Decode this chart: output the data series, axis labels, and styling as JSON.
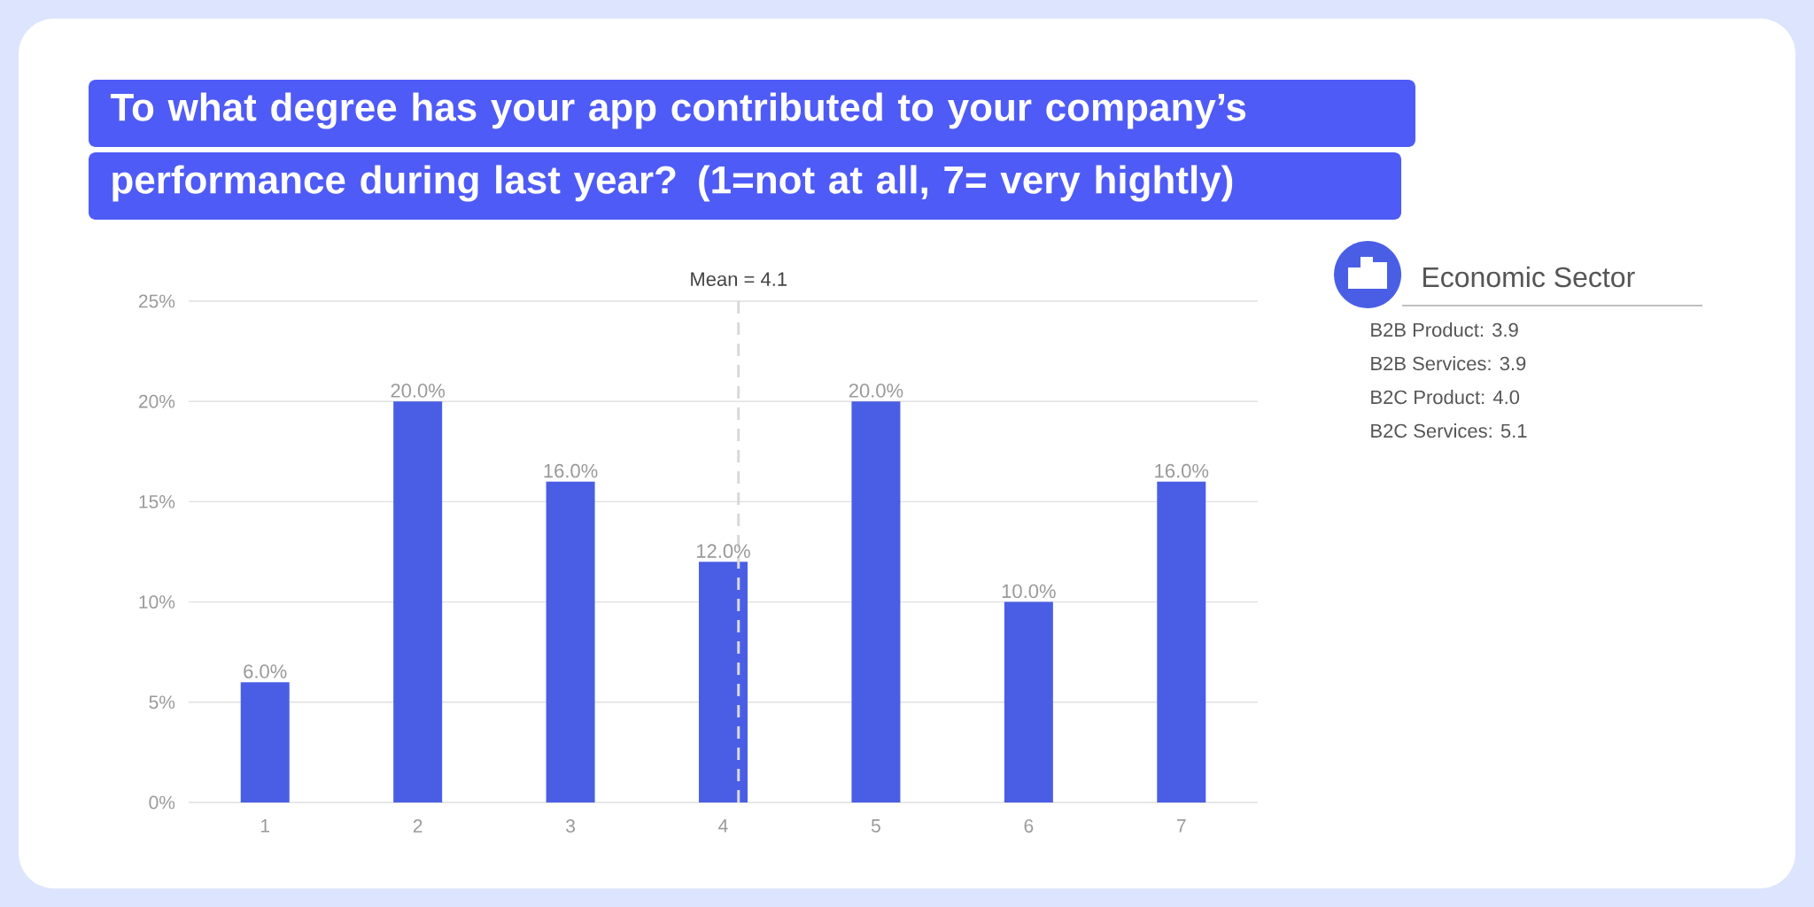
{
  "chart_data": {
    "type": "bar",
    "title": "To what degree has your app contributed to your company’s performance during last year? (1=not at all, 7= very hightly)",
    "x": [
      1,
      2,
      3,
      4,
      5,
      6,
      7
    ],
    "values": [
      6,
      20,
      16,
      12,
      20,
      10,
      16
    ],
    "value_labels": [
      "6.0%",
      "20.0%",
      "16.0%",
      "12.0%",
      "20.0%",
      "10.0%",
      "16.0%"
    ],
    "color": "#4a5ee5",
    "xlim": [
      0.5,
      7.5
    ],
    "xticks": [
      1,
      2,
      3,
      4,
      5,
      6,
      7
    ],
    "ylim": [
      0,
      25
    ],
    "yticks": [
      {
        "value": 0,
        "label": "0%"
      },
      {
        "value": 5,
        "label": "5%"
      },
      {
        "value": 10,
        "label": "10%"
      },
      {
        "value": 15,
        "label": "15%"
      },
      {
        "value": 20,
        "label": "20%"
      },
      {
        "value": 25,
        "label": "25%"
      }
    ],
    "grid": "y",
    "ref_lines": [
      {
        "axis": "x",
        "value": 4.1,
        "label": "Mean = 4.1",
        "color": "#d9d9d9",
        "line_style": "dashed"
      }
    ],
    "annotations": [
      "Economic Sector",
      "B2B Product: 3.9",
      "B2B Services: 3.9",
      "B2C Product: 4.0",
      "B2C Services: 5.1"
    ]
  }
}
